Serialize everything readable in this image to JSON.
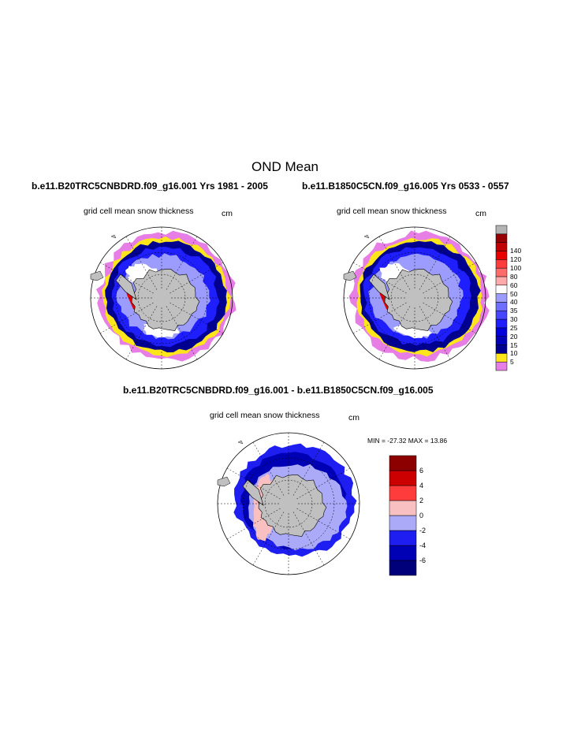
{
  "main_title": "OND Mean",
  "panels": [
    {
      "case_title": "b.e11.B20TRC5CNBDRD.f09_g16.001  Yrs 1981 - 2005",
      "label": "grid cell mean snow thickness",
      "units": "cm"
    },
    {
      "case_title": "b.e11.B1850C5CN.f09_g16.005  Yrs 0533 - 0557",
      "label": "grid cell mean snow thickness",
      "units": "cm"
    },
    {
      "case_title": "b.e11.B20TRC5CNBDRD.f09_g16.001 - b.e11.B1850C5CN.f09_g16.005",
      "label": "grid cell mean snow thickness",
      "units": "cm",
      "min_max": "MIN = -27.32 MAX =  13.86"
    }
  ],
  "colorbar_main": {
    "colors": [
      "#e67ee6",
      "#ffe61a",
      "#000090",
      "#0000b8",
      "#0000dc",
      "#1e1eff",
      "#4646ff",
      "#6e6eff",
      "#9c9cff",
      "#ffffff",
      "#ffaaaa",
      "#ff6a6a",
      "#ff3c3c",
      "#e60000",
      "#c00000",
      "#960000",
      "#b4b4b4"
    ],
    "labels": [
      "5",
      "10",
      "15",
      "20",
      "25",
      "30",
      "35",
      "40",
      "50",
      "60",
      "80",
      "100",
      "120",
      "140"
    ]
  },
  "colorbar_diff": {
    "colors": [
      "#00007a",
      "#0000b4",
      "#1e1ef0",
      "#aaaaf8",
      "#f8c0c0",
      "#ff3c3c",
      "#cc0000",
      "#8c0000"
    ],
    "labels": [
      "-6",
      "-4",
      "-2",
      "0",
      "2",
      "4",
      "6"
    ]
  },
  "map_colors": {
    "land": "#c0c0c0",
    "pink": "#e67ee6",
    "yellow": "#ffe61a",
    "navy": "#000090",
    "blue": "#1e1eff",
    "lightblue": "#9c9cff",
    "red": "#e60000"
  }
}
